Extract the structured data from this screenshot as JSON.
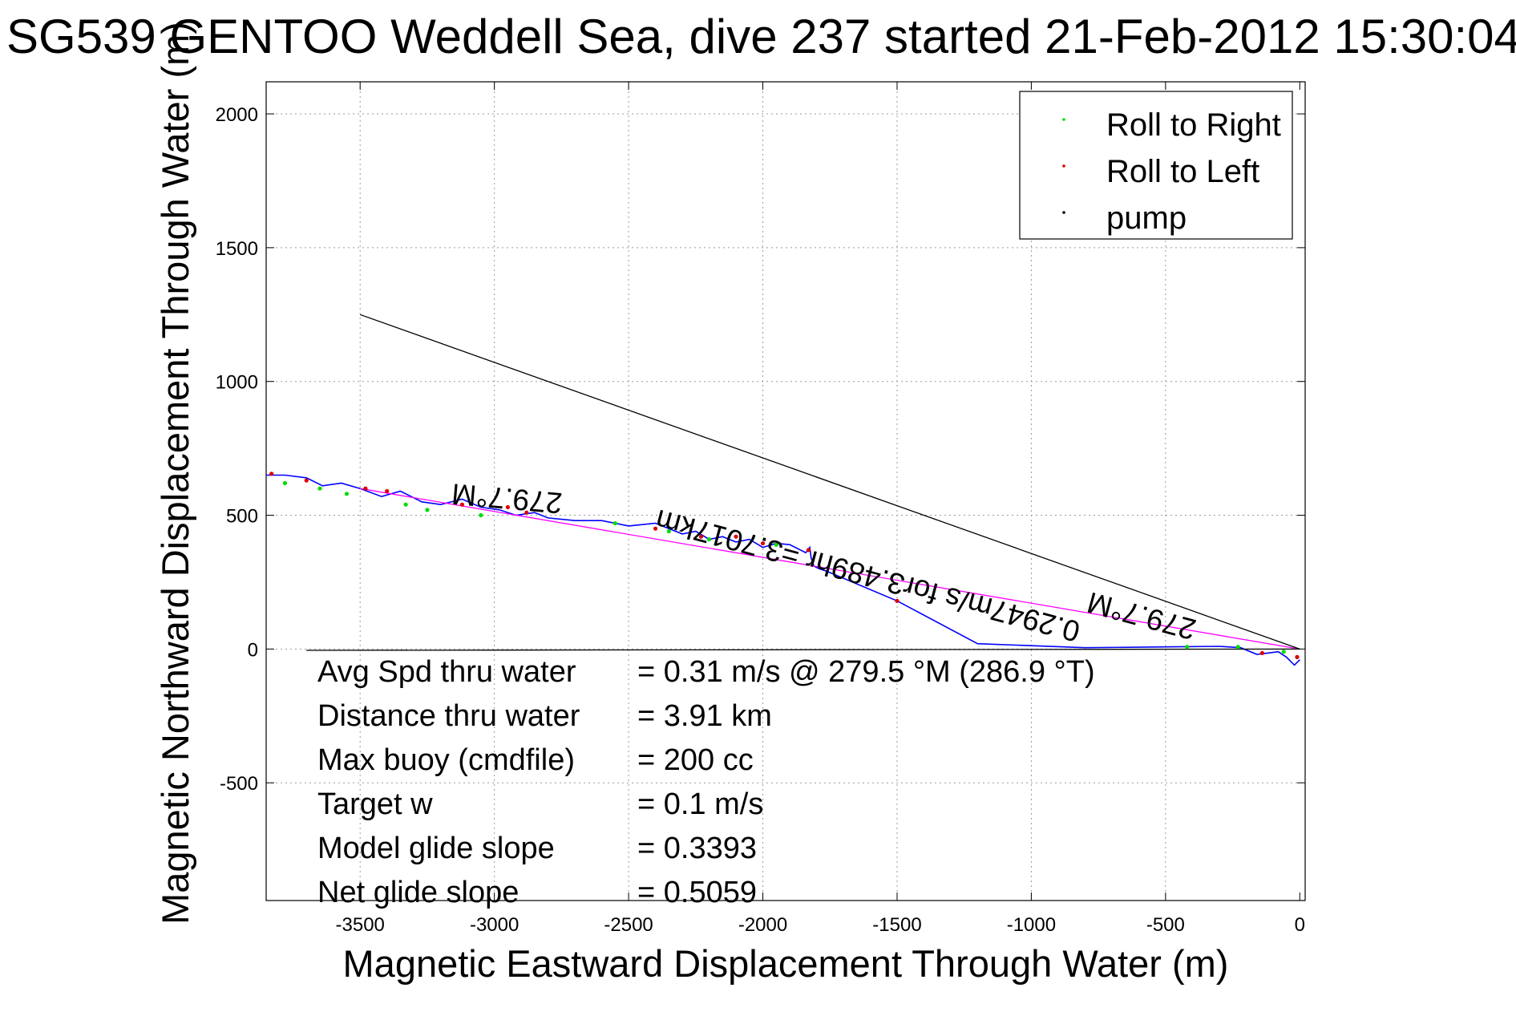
{
  "chart_data": {
    "type": "line",
    "title": "SG539 GENTOO Weddell Sea, dive 237 started 21-Feb-2012 15:30:04",
    "xlabel": "Magnetic Eastward Displacement Through Water (m)",
    "ylabel": "Magnetic Northward Displacement Through Water (m)",
    "xlim": [
      -3850,
      20
    ],
    "ylim": [
      -940,
      2120
    ],
    "xticks": [
      -3500,
      -3000,
      -2500,
      -2000,
      -1500,
      -1000,
      -500,
      0
    ],
    "yticks": [
      -500,
      0,
      500,
      1000,
      1500,
      2000
    ],
    "grid": true,
    "legend_position": "top-right",
    "legend": [
      {
        "label": "Roll to Right",
        "color": "#00dd00"
      },
      {
        "label": "Roll to Left",
        "color": "#dd0000"
      },
      {
        "label": "pump",
        "color": "#000000"
      }
    ],
    "series": [
      {
        "name": "",
        "color": "#0000ff",
        "x": [
          0,
          -20,
          -50,
          -80,
          -120,
          -160,
          -220,
          -300,
          -500,
          -800,
          -1200,
          -1500,
          -1760,
          -1790,
          -1810,
          -1820,
          -1825,
          -1840,
          -1900,
          -1950,
          -2000,
          -2050,
          -2100,
          -2150,
          -2200,
          -2250,
          -2300,
          -2400,
          -2500,
          -2600,
          -2700,
          -2800,
          -2850,
          -2920,
          -2980,
          -3050,
          -3120,
          -3200,
          -3270,
          -3350,
          -3420,
          -3500,
          -3570,
          -3640,
          -3700,
          -3780,
          -3850
        ],
        "y": [
          -40,
          -60,
          -30,
          -10,
          -15,
          -20,
          5,
          10,
          8,
          5,
          20,
          180,
          290,
          300,
          310,
          340,
          380,
          360,
          390,
          395,
          380,
          410,
          400,
          420,
          410,
          440,
          430,
          470,
          460,
          480,
          480,
          490,
          510,
          500,
          520,
          530,
          560,
          540,
          550,
          590,
          570,
          600,
          620,
          610,
          640,
          650,
          650
        ]
      },
      {
        "name": "",
        "color": "#ff00ff",
        "x": [
          0,
          -3500
        ],
        "y": [
          0,
          600
        ]
      },
      {
        "name": "",
        "color": "#000000",
        "x": [
          0,
          -3500
        ],
        "y": [
          0,
          1250
        ]
      },
      {
        "name": "",
        "color": "#000000",
        "x": [
          0,
          -3700
        ],
        "y": [
          0,
          -5
        ]
      }
    ],
    "markers": {
      "roll_right": {
        "x": [
          -60,
          -230,
          -420,
          -1950,
          -2200,
          -2350,
          -2550,
          -3050,
          -3250,
          -3330,
          -3550,
          -3650,
          -3780
        ],
        "y": [
          -10,
          8,
          8,
          390,
          410,
          440,
          470,
          500,
          520,
          540,
          580,
          600,
          620
        ]
      },
      "roll_left": {
        "x": [
          -10,
          -140,
          -1500,
          -1830,
          -2000,
          -2100,
          -2230,
          -2400,
          -2880,
          -2950,
          -3120,
          -3400,
          -3480,
          -3700,
          -3830
        ],
        "y": [
          -30,
          -15,
          180,
          370,
          395,
          420,
          420,
          450,
          510,
          530,
          540,
          590,
          600,
          630,
          655
        ]
      }
    },
    "annotations": [
      {
        "text": "279.7°M",
        "x": -2950,
        "y": 600,
        "rotation": 185
      },
      {
        "text": "279.7°M",
        "x": -580,
        "y": 160,
        "rotation": 195
      },
      {
        "text": "0.2947m/s for3.489hr =3.7017km",
        "x": -1600,
        "y": 310,
        "rotation": 195
      }
    ],
    "stats": [
      {
        "label": "Avg Spd thru water",
        "value": "=  0.31 m/s @ 279.5 °M (286.9 °T)"
      },
      {
        "label": "Distance thru water",
        "value": "=  3.91 km"
      },
      {
        "label": "Max buoy (cmdfile)",
        "value": "= 200 cc"
      },
      {
        "label": "Target w",
        "value": "= 0.1 m/s"
      },
      {
        "label": "Model glide slope",
        "value": "= 0.3393"
      },
      {
        "label": "Net glide slope",
        "value": "= 0.5059"
      }
    ]
  }
}
